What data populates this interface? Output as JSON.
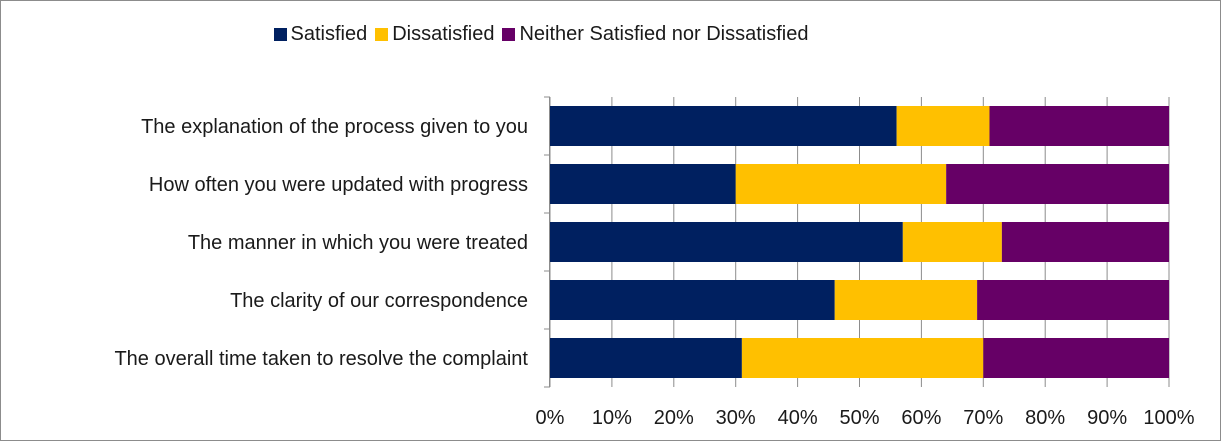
{
  "chart_data": {
    "type": "bar",
    "orientation": "horizontal",
    "stacked": true,
    "percent_stacked": true,
    "categories": [
      "The explanation of the process given to you",
      "How often you were updated with progress",
      "The manner in which you were treated",
      "The clarity of our correspondence",
      "The overall time taken to resolve the complaint"
    ],
    "series": [
      {
        "name": "Satisfied",
        "color": "#002060",
        "values": [
          56,
          30,
          57,
          46,
          31
        ]
      },
      {
        "name": "Dissatisfied",
        "color": "#FFC000",
        "values": [
          15,
          34,
          16,
          23,
          39
        ]
      },
      {
        "name": "Neither Satisfied nor Dissatisfied",
        "color": "#660066",
        "values": [
          29,
          36,
          27,
          31,
          30
        ]
      }
    ],
    "xlim": [
      0,
      100
    ],
    "xticks": [
      "0%",
      "10%",
      "20%",
      "30%",
      "40%",
      "50%",
      "60%",
      "70%",
      "80%",
      "90%",
      "100%"
    ],
    "grid": true,
    "legend_position": "top"
  }
}
